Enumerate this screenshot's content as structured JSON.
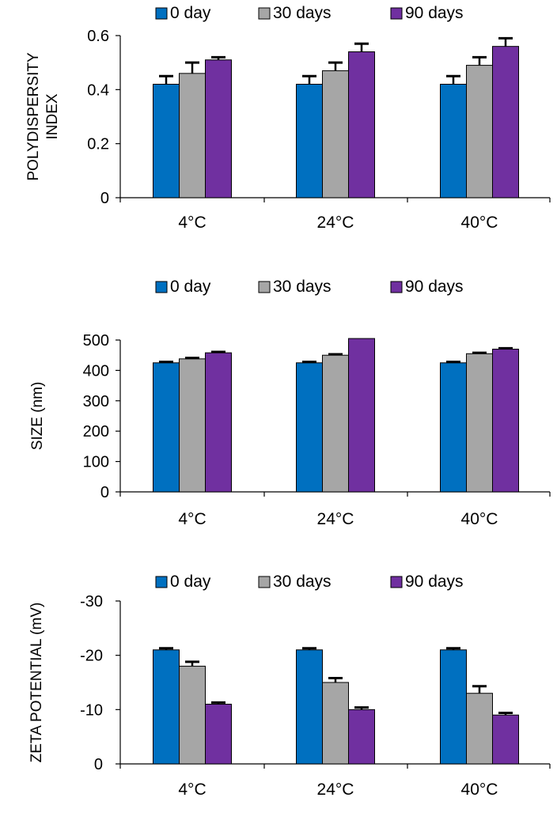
{
  "colors": {
    "series": [
      "#0070c0",
      "#a6a6a6",
      "#7030a0"
    ],
    "bar_stroke": "#000000",
    "axis": "#000000"
  },
  "chart_data": [
    {
      "type": "bar",
      "legend_position": "top",
      "grid": false,
      "categories": [
        "4°C",
        "24°C",
        "40°C"
      ],
      "ylabel": [
        "POLYDISPERSITY",
        "INDEX"
      ],
      "ylim": [
        0,
        0.6
      ],
      "yticks": [
        0,
        0.2,
        0.4,
        0.6
      ],
      "ytick_labels": [
        "0",
        "0.2",
        "0.4",
        "0.6"
      ],
      "series": [
        {
          "name": "0 day",
          "values": [
            0.42,
            0.42,
            0.42
          ],
          "errors": [
            0.03,
            0.03,
            0.03
          ]
        },
        {
          "name": "30 days",
          "values": [
            0.46,
            0.47,
            0.49
          ],
          "errors": [
            0.04,
            0.03,
            0.03
          ]
        },
        {
          "name": "90 days",
          "values": [
            0.51,
            0.54,
            0.56
          ],
          "errors": [
            0.01,
            0.03,
            0.03
          ]
        }
      ]
    },
    {
      "type": "bar",
      "legend_position": "top",
      "grid": false,
      "categories": [
        "4°C",
        "24°C",
        "40°C"
      ],
      "ylabel": [
        "SIZE (nm)"
      ],
      "ylim": [
        0,
        500
      ],
      "yticks": [
        0,
        100,
        200,
        300,
        400,
        500
      ],
      "ytick_labels": [
        "0",
        "100",
        "200",
        "300",
        "400",
        "500"
      ],
      "series": [
        {
          "name": "0 day",
          "values": [
            425,
            425,
            425
          ],
          "errors": [
            3,
            3,
            3
          ]
        },
        {
          "name": "30 days",
          "values": [
            438,
            450,
            455
          ],
          "errors": [
            3,
            3,
            3
          ]
        },
        {
          "name": "90 days",
          "values": [
            458,
            505,
            470
          ],
          "errors": [
            3,
            0,
            3
          ]
        }
      ]
    },
    {
      "type": "bar",
      "legend_position": "top",
      "grid": false,
      "categories": [
        "4°C",
        "24°C",
        "40°C"
      ],
      "ylabel": [
        "ZETA POTENTIAL (mV)"
      ],
      "ylim": [
        0,
        -30
      ],
      "yticks": [
        0,
        -10,
        -20,
        -30
      ],
      "ytick_labels": [
        "0",
        "-10",
        "-20",
        "-30"
      ],
      "series": [
        {
          "name": "0 day",
          "values": [
            -21,
            -21,
            -21
          ],
          "errors": [
            0.3,
            0.3,
            0.3
          ]
        },
        {
          "name": "30 days",
          "values": [
            -18,
            -15,
            -13
          ],
          "errors": [
            0.8,
            0.8,
            1.3
          ]
        },
        {
          "name": "90 days",
          "values": [
            -11,
            -10,
            -9
          ],
          "errors": [
            0.3,
            0.4,
            0.4
          ]
        }
      ]
    }
  ]
}
